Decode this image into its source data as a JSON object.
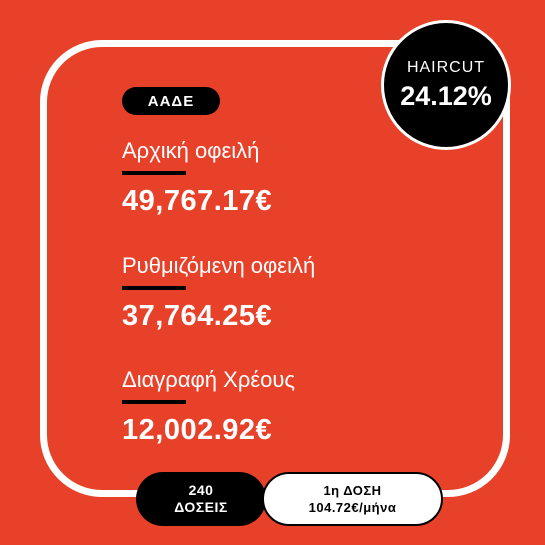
{
  "source_badge": "ΑΑΔΕ",
  "haircut": {
    "label": "HAIRCUT",
    "value": "24.12%"
  },
  "rows": [
    {
      "label": "Αρχική οφειλή",
      "value": "49,767.17€"
    },
    {
      "label": "Ρυθμιζόμενη οφειλή",
      "value": "37,764.25€"
    },
    {
      "label": "Διαγραφή Χρέους",
      "value": "12,002.92€"
    }
  ],
  "installments": {
    "count": "240",
    "label": "ΔΟΣΕΙΣ"
  },
  "first_installment": {
    "label": "1η ΔΟΣΗ",
    "value": "104.72€/μήνα"
  },
  "colors": {
    "background": "#e8412a",
    "frame": "#ffffff",
    "badge": "#000000"
  }
}
